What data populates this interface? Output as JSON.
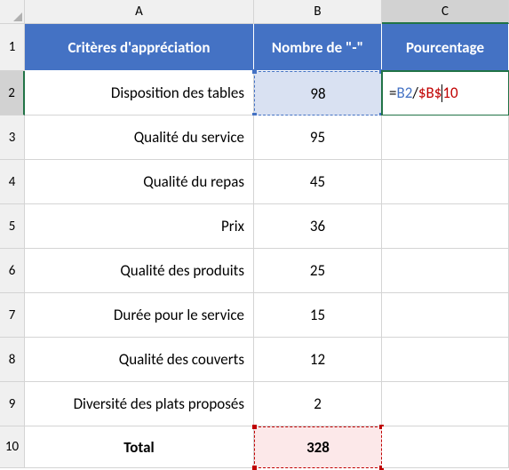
{
  "columns": [
    "A",
    "B",
    "C"
  ],
  "row_numbers": [
    "1",
    "2",
    "3",
    "4",
    "5",
    "6",
    "7",
    "8",
    "9",
    "10"
  ],
  "headers": {
    "A": "Critères d'appréciation",
    "B": "Nombre de \"-\"",
    "C": "Pourcentage"
  },
  "rows": [
    {
      "label": "Disposition des tables",
      "value": "98"
    },
    {
      "label": "Qualité du service",
      "value": "95"
    },
    {
      "label": "Qualité du repas",
      "value": "45"
    },
    {
      "label": "Prix",
      "value": "36"
    },
    {
      "label": "Qualité des produits",
      "value": "25"
    },
    {
      "label": "Durée pour le service",
      "value": "15"
    },
    {
      "label": "Qualité des couverts",
      "value": "12"
    },
    {
      "label": "Diversité des plats proposés",
      "value": "2"
    }
  ],
  "total": {
    "label": "Total",
    "value": "328"
  },
  "formula": {
    "eq": "=",
    "ref1": "B2",
    "slash": "/",
    "ref2_a": "$B$",
    "ref2_b": "10"
  },
  "colors": {
    "header_bg": "#4472c4",
    "ref_border": "#4472c4",
    "ref_bg": "#d9e1f2",
    "total_border": "#c00000",
    "total_bg": "#fce8e9",
    "active_border": "#217346"
  },
  "active": {
    "col": "C",
    "row": "2"
  }
}
